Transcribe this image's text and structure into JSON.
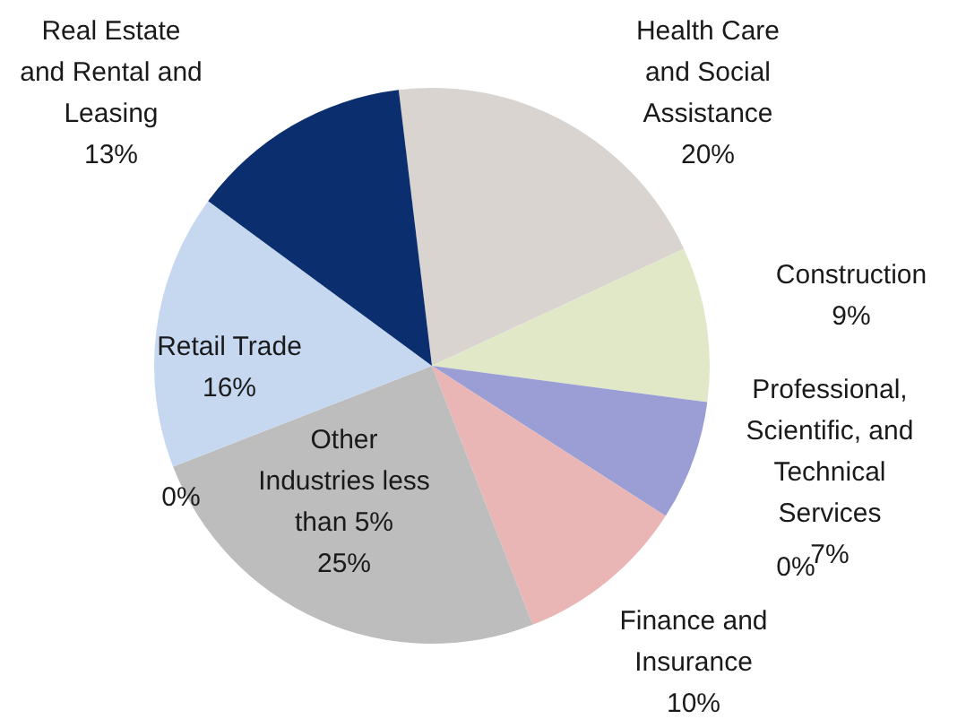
{
  "chart_data": {
    "type": "pie",
    "categories": [
      "Health Care and Social Assistance",
      "Construction",
      "Professional, Scientific, and Technical Services",
      null,
      "Finance and Insurance",
      "Other Industries less than 5%",
      null,
      "Retail Trade",
      "Real Estate and Rental and Leasing"
    ],
    "values": [
      20,
      9,
      7,
      0,
      10,
      25,
      0,
      16,
      13
    ],
    "value_labels": [
      "20%",
      "9%",
      "7%",
      "0%",
      "10%",
      "25%",
      "0%",
      "16%",
      "13%"
    ],
    "colors": [
      "#d9d4d0",
      "#e1e8c8",
      "#9a9ed4",
      "#c8a0a0",
      "#e9b5b5",
      "#bdbdbd",
      "#a0b0c8",
      "#c6d8ef",
      "#0b2f6e"
    ]
  }
}
